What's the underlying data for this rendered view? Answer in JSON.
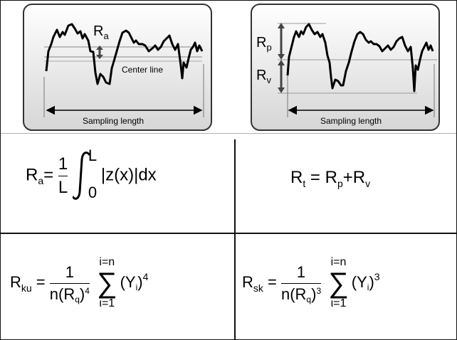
{
  "panel_left": {
    "label_ra": "R",
    "label_ra_sub": "a",
    "center_line": "Center line",
    "sampling_length": "Sampling length"
  },
  "panel_right": {
    "label_rp": "R",
    "label_rp_sub": "p",
    "label_rv": "R",
    "label_rv_sub": "v",
    "sampling_length": "Sampling length"
  },
  "formula_ra": {
    "lhs": "R",
    "lhs_sub": "a",
    "eq": "=",
    "num": "1",
    "den": "L",
    "upper": "L",
    "lower": "0",
    "integrand": "|z(x)|dx"
  },
  "formula_rt": {
    "lhs": "R",
    "lhs_sub": "t",
    "eq": " = ",
    "t1": "R",
    "t1_sub": "p",
    "plus": "+",
    "t2": "R",
    "t2_sub": "v"
  },
  "formula_rku": {
    "lhs": "R",
    "lhs_sub": "ku",
    "eq": " = ",
    "num": "1",
    "den_a": "n(R",
    "den_sub": "q",
    "den_b": ")",
    "den_pow": "4",
    "sum_top": "i=n",
    "sum_bottom": "ι=1",
    "term": "(Y",
    "term_sub": "i",
    "term_close": ")",
    "term_pow": "4"
  },
  "formula_rsk": {
    "lhs": "R",
    "lhs_sub": "sk",
    "eq": " = ",
    "num": "1",
    "den_a": "n(R",
    "den_sub": "q",
    "den_b": ")",
    "den_pow": "3",
    "sum_top": "i=n",
    "sum_bottom": "ι=1",
    "term": "(Y",
    "term_sub": "i",
    "term_close": ")",
    "term_pow": "3"
  }
}
